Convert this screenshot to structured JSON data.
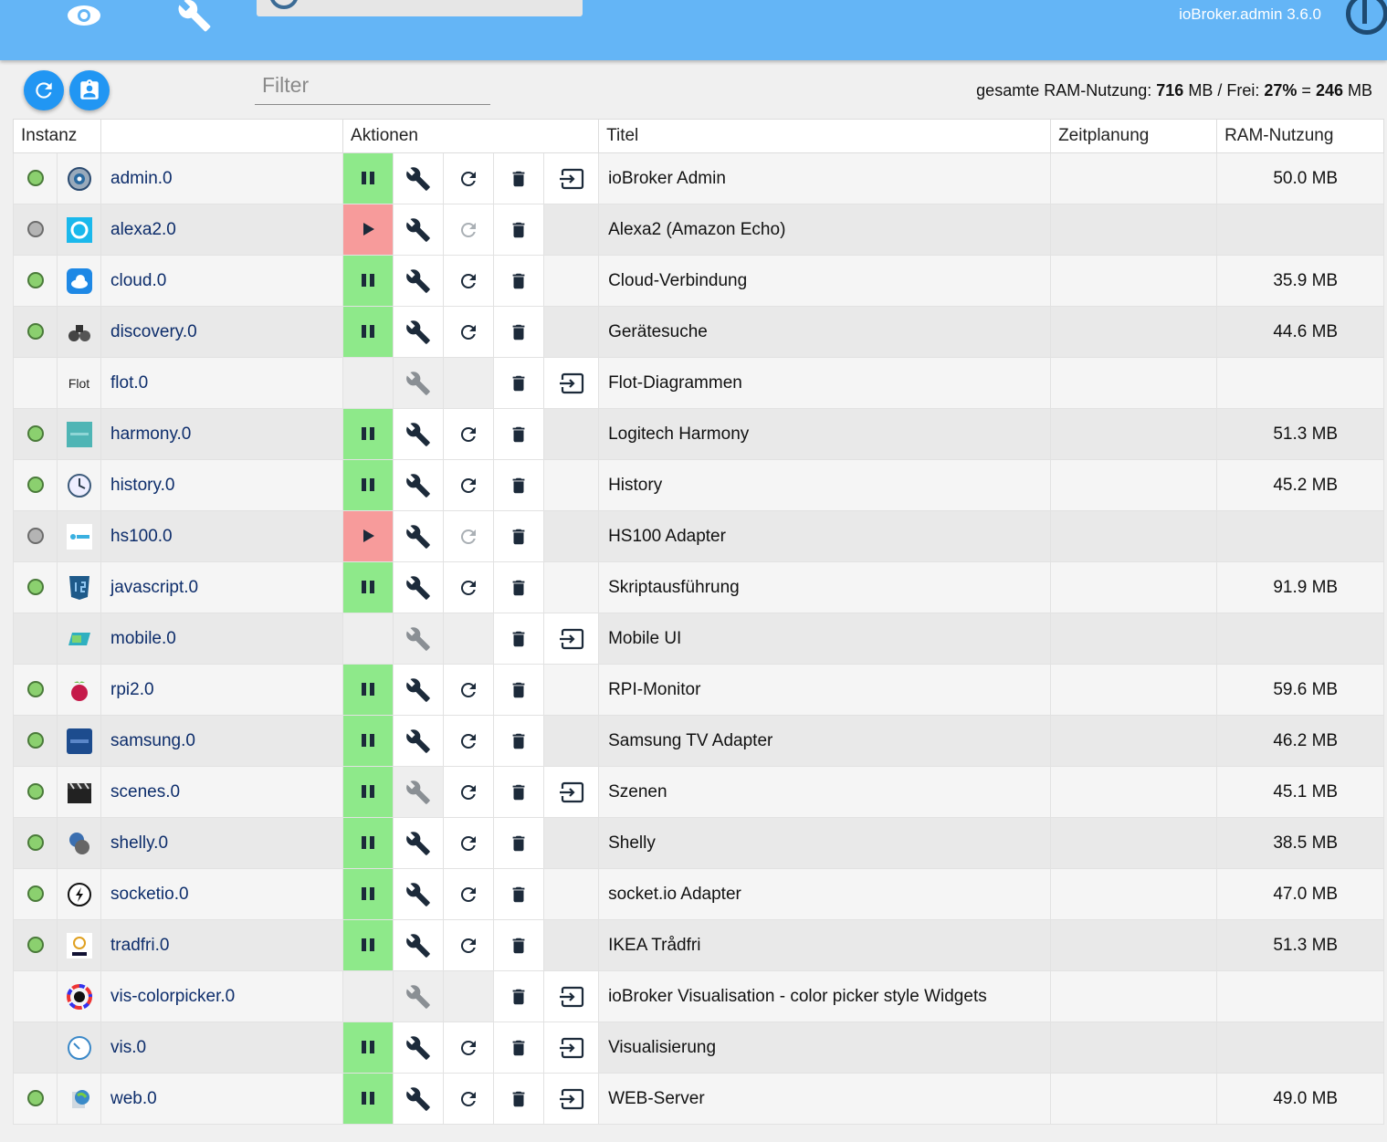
{
  "header": {
    "version": "ioBroker.admin 3.6.0"
  },
  "toolbar": {
    "filter_placeholder": "Filter",
    "ram_label": "gesamte RAM-Nutzung:",
    "ram_total": "716",
    "ram_unit1": "MB / Frei:",
    "free_percent": "27%",
    "eq": "=",
    "free_mb": "246",
    "ram_unit2": "MB"
  },
  "columns": {
    "instance": "Instanz",
    "actions": "Aktionen",
    "title": "Titel",
    "schedule": "Zeitplanung",
    "ram": "RAM-Nutzung"
  },
  "colors": {
    "header": "#64b5f6",
    "running": "#8ee98a",
    "stopped": "#f79b9b",
    "link": "#0d2d6b"
  },
  "rows": [
    {
      "name": "admin.0",
      "title": "ioBroker Admin",
      "ram": "50.0 MB",
      "status": "green",
      "state": "running",
      "icon": "gear-icon",
      "reload": true,
      "link": true,
      "config": true
    },
    {
      "name": "alexa2.0",
      "title": "Alexa2 (Amazon Echo)",
      "ram": "",
      "status": "grey",
      "state": "stopped",
      "icon": "alexa-icon",
      "reload": false,
      "link": false,
      "config": true
    },
    {
      "name": "cloud.0",
      "title": "Cloud-Verbindung",
      "ram": "35.9 MB",
      "status": "green",
      "state": "running",
      "icon": "cloud-icon",
      "reload": true,
      "link": false,
      "config": true
    },
    {
      "name": "discovery.0",
      "title": "Gerätesuche",
      "ram": "44.6 MB",
      "status": "green",
      "state": "running",
      "icon": "binoculars-icon",
      "reload": true,
      "link": false,
      "config": true
    },
    {
      "name": "flot.0",
      "title": "Flot-Diagrammen",
      "ram": "",
      "status": "none",
      "state": "none",
      "icon": "flot-icon",
      "reload": null,
      "link": true,
      "config": false,
      "icon_text": "Flot"
    },
    {
      "name": "harmony.0",
      "title": "Logitech Harmony",
      "ram": "51.3 MB",
      "status": "green",
      "state": "running",
      "icon": "harmony-icon",
      "reload": true,
      "link": false,
      "config": true
    },
    {
      "name": "history.0",
      "title": "History",
      "ram": "45.2 MB",
      "status": "green",
      "state": "running",
      "icon": "clock-icon",
      "reload": true,
      "link": false,
      "config": true
    },
    {
      "name": "hs100.0",
      "title": "HS100 Adapter",
      "ram": "",
      "status": "grey",
      "state": "stopped",
      "icon": "tplink-icon",
      "reload": false,
      "link": false,
      "config": true
    },
    {
      "name": "javascript.0",
      "title": "Skriptausführung",
      "ram": "91.9 MB",
      "status": "green",
      "state": "running",
      "icon": "js-icon",
      "reload": true,
      "link": false,
      "config": true
    },
    {
      "name": "mobile.0",
      "title": "Mobile UI",
      "ram": "",
      "status": "none",
      "state": "none",
      "icon": "mobile-icon",
      "reload": null,
      "link": true,
      "config": false
    },
    {
      "name": "rpi2.0",
      "title": "RPI-Monitor",
      "ram": "59.6 MB",
      "status": "green",
      "state": "running",
      "icon": "raspberry-icon",
      "reload": true,
      "link": false,
      "config": true
    },
    {
      "name": "samsung.0",
      "title": "Samsung TV Adapter",
      "ram": "46.2 MB",
      "status": "green",
      "state": "running",
      "icon": "samsung-icon",
      "reload": true,
      "link": false,
      "config": true
    },
    {
      "name": "scenes.0",
      "title": "Szenen",
      "ram": "45.1 MB",
      "status": "green",
      "state": "running",
      "icon": "clapper-icon",
      "reload": true,
      "link": true,
      "config": false
    },
    {
      "name": "shelly.0",
      "title": "Shelly",
      "ram": "38.5 MB",
      "status": "green",
      "state": "running",
      "icon": "shelly-icon",
      "reload": true,
      "link": false,
      "config": true
    },
    {
      "name": "socketio.0",
      "title": "socket.io Adapter",
      "ram": "47.0 MB",
      "status": "green",
      "state": "running",
      "icon": "socketio-icon",
      "reload": true,
      "link": false,
      "config": true
    },
    {
      "name": "tradfri.0",
      "title": "IKEA Trådfri",
      "ram": "51.3 MB",
      "status": "green",
      "state": "running",
      "icon": "ikea-icon",
      "reload": true,
      "link": false,
      "config": true
    },
    {
      "name": "vis-colorpicker.0",
      "title": "ioBroker Visualisation - color picker style Widgets",
      "ram": "",
      "status": "none",
      "state": "none",
      "icon": "colorpicker-icon",
      "reload": null,
      "link": true,
      "config": false
    },
    {
      "name": "vis.0",
      "title": "Visualisierung",
      "ram": "",
      "status": "none",
      "state": "running",
      "icon": "gauge-icon",
      "reload": true,
      "link": true,
      "config": true
    },
    {
      "name": "web.0",
      "title": "WEB-Server",
      "ram": "49.0 MB",
      "status": "green",
      "state": "running",
      "icon": "web-icon",
      "reload": true,
      "link": true,
      "config": true
    }
  ]
}
